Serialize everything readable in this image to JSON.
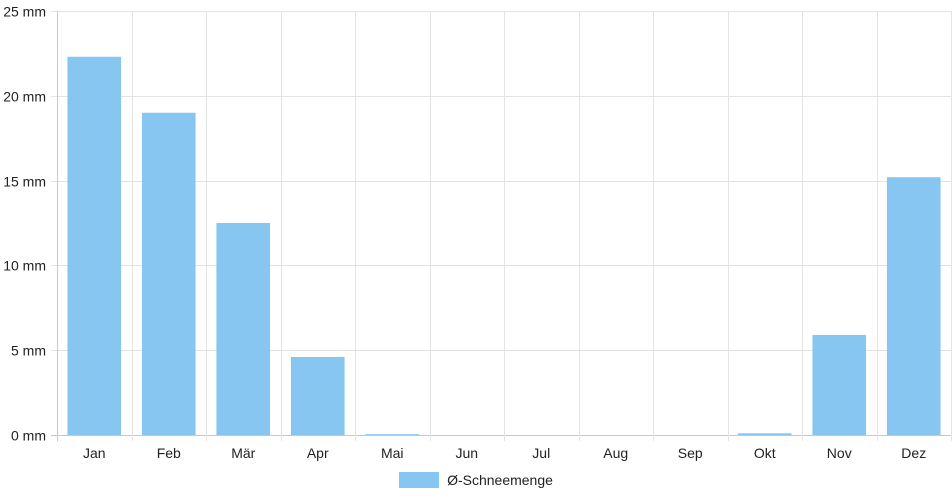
{
  "chart_data": {
    "type": "bar",
    "categories": [
      "Jan",
      "Feb",
      "Mär",
      "Apr",
      "Mai",
      "Jun",
      "Jul",
      "Aug",
      "Sep",
      "Okt",
      "Nov",
      "Dez"
    ],
    "series": [
      {
        "name": "Ø-Schneemenge",
        "values": [
          22.3,
          19.0,
          12.5,
          4.6,
          0.05,
          0,
          0,
          0,
          0,
          0.1,
          5.9,
          15.2
        ]
      }
    ],
    "ylim": [
      0,
      25
    ],
    "yticks": [
      0,
      5,
      10,
      15,
      20,
      25
    ],
    "ytick_labels": [
      "0 mm",
      "5 mm",
      "10 mm",
      "15 mm",
      "20 mm",
      "25 mm"
    ],
    "grid": true,
    "legend": "bottom-center",
    "colors": {
      "bar": "#88c6f2",
      "grid": "#e3e3e3",
      "axis": "#c8c8c8",
      "text": "#222222"
    }
  }
}
